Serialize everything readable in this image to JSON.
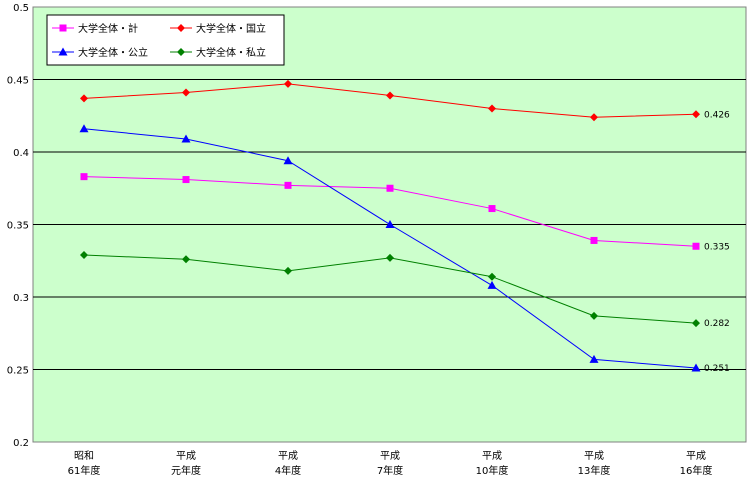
{
  "chart_data": {
    "type": "line",
    "categories": [
      [
        "昭和",
        "61年度"
      ],
      [
        "平成",
        "元年度"
      ],
      [
        "平成",
        "4年度"
      ],
      [
        "平成",
        "7年度"
      ],
      [
        "平成",
        "10年度"
      ],
      [
        "平成",
        "13年度"
      ],
      [
        "平成",
        "16年度"
      ]
    ],
    "ylim": [
      0.2,
      0.5
    ],
    "yticks": [
      "0.2",
      "0.25",
      "0.3",
      "0.35",
      "0.4",
      "0.45",
      "0.5"
    ],
    "grid": true,
    "legend_position": "top-left",
    "plot_background": "#ccffcc",
    "series": [
      {
        "name": "大学全体・計",
        "color": "#ff00ff",
        "marker": "square",
        "values": [
          0.383,
          0.381,
          0.377,
          0.375,
          0.361,
          0.339,
          0.335
        ],
        "end_label": "0.335"
      },
      {
        "name": "大学全体・国立",
        "color": "#ff0000",
        "marker": "diamond",
        "values": [
          0.437,
          0.441,
          0.447,
          0.439,
          0.43,
          0.424,
          0.426
        ],
        "end_label": "0.426"
      },
      {
        "name": "大学全体・公立",
        "color": "#0000ff",
        "marker": "triangle",
        "values": [
          0.416,
          0.409,
          0.394,
          0.35,
          0.308,
          0.257,
          0.251
        ],
        "end_label": "0.251"
      },
      {
        "name": "大学全体・私立",
        "color": "#008000",
        "marker": "diamond",
        "values": [
          0.329,
          0.326,
          0.318,
          0.327,
          0.314,
          0.287,
          0.282
        ],
        "end_label": "0.282"
      }
    ]
  }
}
